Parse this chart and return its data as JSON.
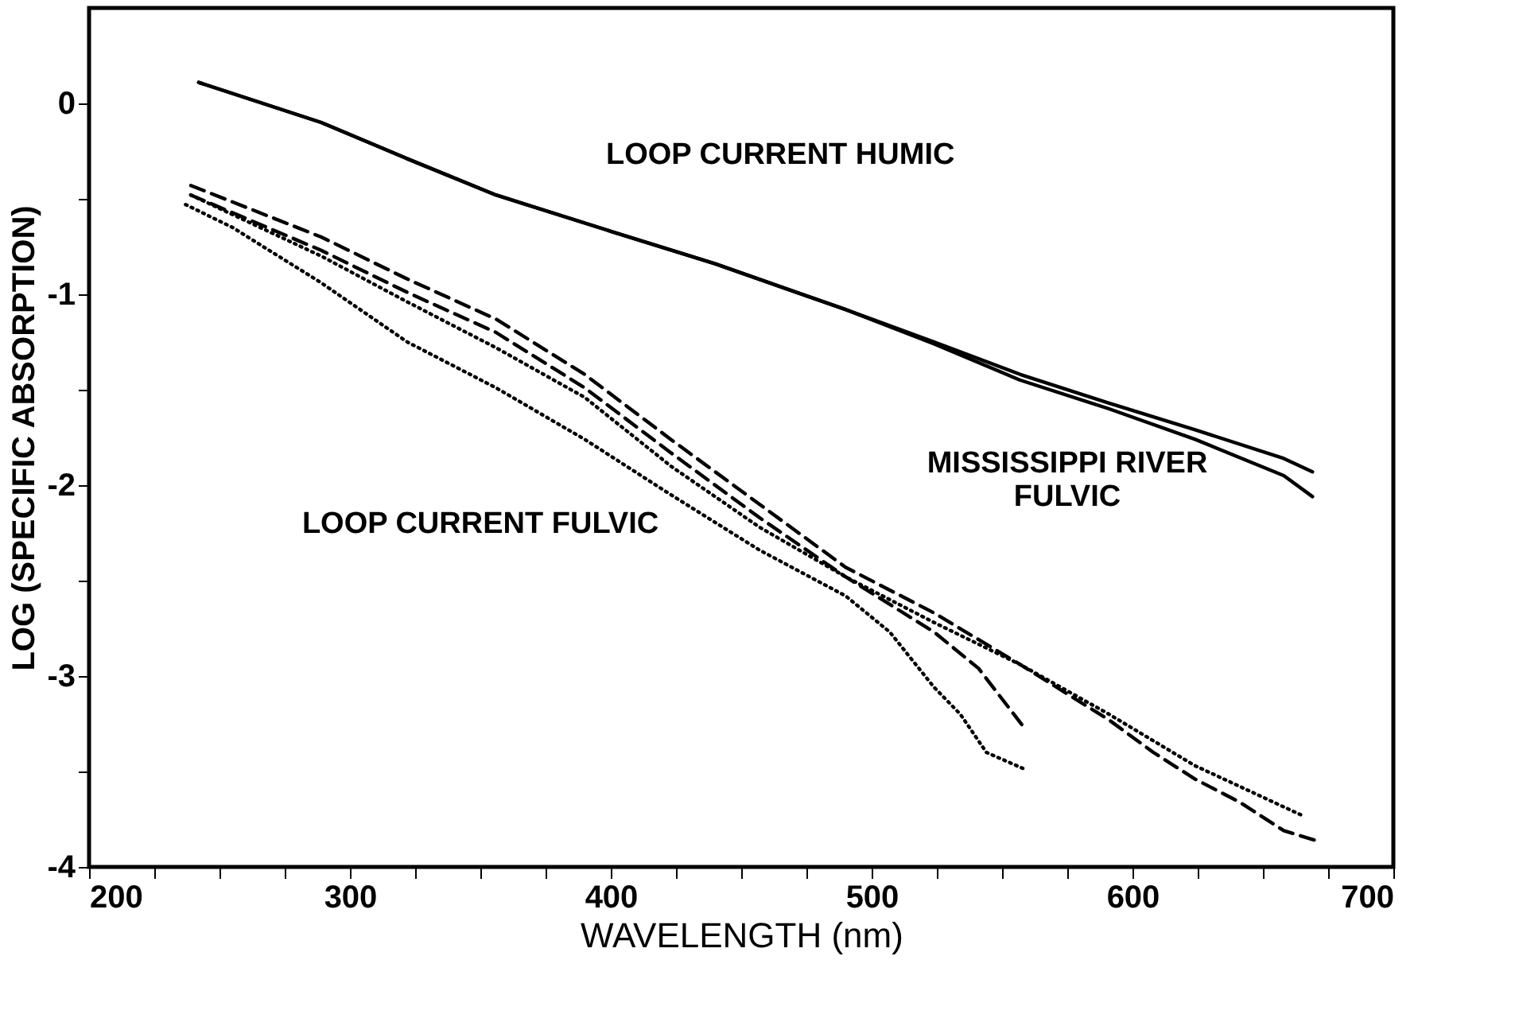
{
  "chart_data": {
    "type": "line",
    "xlabel": "WAVELENGTH (nm)",
    "ylabel": "LOG (SPECIFIC ABSORPTION)",
    "xlim": [
      200,
      700
    ],
    "ylim": [
      -4,
      0.5
    ],
    "xticks": [
      200,
      {
        "value": 225,
        "label": null
      },
      {
        "value": 250,
        "label": null
      },
      {
        "value": 275,
        "label": null
      },
      300,
      {
        "value": 325,
        "label": null
      },
      {
        "value": 350,
        "label": null
      },
      {
        "value": 375,
        "label": null
      },
      400,
      {
        "value": 425,
        "label": null
      },
      {
        "value": 450,
        "label": null
      },
      {
        "value": 475,
        "label": null
      },
      500,
      {
        "value": 525,
        "label": null
      },
      {
        "value": 550,
        "label": null
      },
      {
        "value": 575,
        "label": null
      },
      600,
      {
        "value": 625,
        "label": null
      },
      {
        "value": 650,
        "label": null
      },
      {
        "value": 675,
        "label": null
      },
      700
    ],
    "yticks": [
      -4,
      {
        "value": -3.5,
        "label": null
      },
      -3,
      {
        "value": -2.5,
        "label": null
      },
      -2,
      {
        "value": -1.5,
        "label": null
      },
      -1,
      {
        "value": -0.5,
        "label": null
      },
      0
    ],
    "grid": false,
    "marker": "none",
    "series": [
      {
        "color": "#000000",
        "line_style": "solid",
        "x": [
          242,
          289,
          322,
          356,
          400,
          440,
          490,
          524,
          557,
          591,
          624,
          658,
          669
        ],
        "values": [
          0.11,
          -0.1,
          -0.29,
          -0.48,
          -0.67,
          -0.84,
          -1.08,
          -1.25,
          -1.42,
          -1.57,
          -1.71,
          -1.86,
          -1.93
        ]
      },
      {
        "color": "#000000",
        "line_style": "solid",
        "x": [
          242,
          289,
          322,
          356,
          400,
          440,
          490,
          524,
          557,
          591,
          624,
          658,
          669
        ],
        "values": [
          0.11,
          -0.1,
          -0.29,
          -0.48,
          -0.67,
          -0.84,
          -1.08,
          -1.26,
          -1.45,
          -1.6,
          -1.76,
          -1.95,
          -2.06
        ]
      },
      {
        "color": "#000000",
        "line_style": "dashed",
        "x": [
          239,
          289,
          322,
          356,
          390,
          423,
          457,
          490,
          524,
          557,
          591,
          608,
          624,
          641,
          658,
          670
        ],
        "values": [
          -0.43,
          -0.7,
          -0.92,
          -1.13,
          -1.42,
          -1.76,
          -2.1,
          -2.43,
          -2.67,
          -2.94,
          -3.23,
          -3.4,
          -3.54,
          -3.66,
          -3.81,
          -3.86
        ]
      },
      {
        "color": "#000000",
        "line_style": "dashed",
        "x": [
          239,
          289,
          322,
          356,
          390,
          423,
          457,
          490,
          524,
          541,
          559
        ],
        "values": [
          -0.48,
          -0.77,
          -0.99,
          -1.2,
          -1.49,
          -1.83,
          -2.17,
          -2.48,
          -2.77,
          -2.96,
          -3.28
        ]
      },
      {
        "color": "#000000",
        "line_style": "dotted",
        "x": [
          239,
          289,
          322,
          356,
          390,
          423,
          457,
          490,
          524,
          557,
          591,
          624,
          665
        ],
        "values": [
          -0.48,
          -0.8,
          -1.04,
          -1.28,
          -1.54,
          -1.9,
          -2.22,
          -2.48,
          -2.72,
          -2.94,
          -3.2,
          -3.47,
          -3.73
        ]
      },
      {
        "color": "#000000",
        "line_style": "dotted",
        "x": [
          237,
          255,
          289,
          322,
          356,
          390,
          423,
          457,
          490,
          507,
          524,
          534,
          544,
          559
        ],
        "values": [
          -0.53,
          -0.65,
          -0.94,
          -1.25,
          -1.49,
          -1.76,
          -2.05,
          -2.34,
          -2.58,
          -2.77,
          -3.06,
          -3.2,
          -3.4,
          -3.49
        ]
      }
    ],
    "annotations": [
      "LOOP CURRENT HUMIC",
      "MISSISSIPPI RIVER\nFULVIC",
      "LOOP CURRENT FULVIC"
    ]
  }
}
